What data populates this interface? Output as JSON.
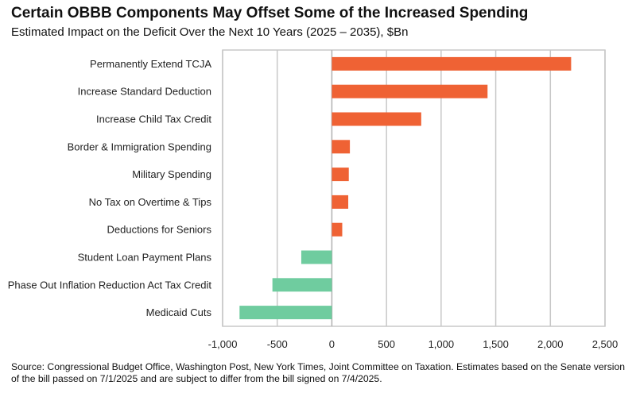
{
  "chart_data": {
    "type": "bar",
    "orientation": "horizontal",
    "title": "Certain OBBB Components May Offset Some of the Increased Spending",
    "subtitle": "Estimated Impact on the Deficit Over the Next 10 Years (2025 – 2035), $Bn",
    "categories": [
      "Permanently Extend TCJA",
      "Increase Standard Deduction",
      "Increase Child Tax Credit",
      "Border & Immigration Spending",
      "Military Spending",
      "No Tax on Overtime & Tips",
      "Deductions for Seniors",
      "Student Loan Payment Plans",
      "Phase Out Inflation Reduction Act Tax Credit",
      "Medicaid Cuts"
    ],
    "values": [
      2190,
      1425,
      818,
      165,
      155,
      150,
      95,
      -280,
      -544,
      -845
    ],
    "xlim": [
      -1000,
      2500
    ],
    "xticks": [
      -1000,
      -500,
      0,
      500,
      1000,
      1500,
      2000,
      2500
    ],
    "xtick_labels": [
      "-1,000",
      "-500",
      "0",
      "500",
      "1,000",
      "1,500",
      "2,000",
      "2,500"
    ],
    "grid": "vertical",
    "colors": {
      "positive": "#ef6234",
      "negative": "#6fcc9f",
      "grid": "#c8c8c8"
    }
  },
  "source": "Source: Congressional Budget Office, Washington Post, New York Times, Joint Committee on Taxation. Estimates based on the Senate version of the bill passed on 7/1/2025 and are subject to differ from the bill signed on 7/4/2025."
}
